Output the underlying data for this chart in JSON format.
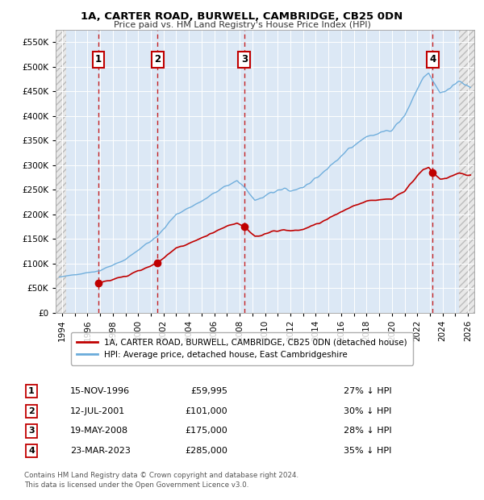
{
  "title": "1A, CARTER ROAD, BURWELL, CAMBRIDGE, CB25 0DN",
  "subtitle": "Price paid vs. HM Land Registry's House Price Index (HPI)",
  "legend_line1": "1A, CARTER ROAD, BURWELL, CAMBRIDGE, CB25 0DN (detached house)",
  "legend_line2": "HPI: Average price, detached house, East Cambridgeshire",
  "footer_line1": "Contains HM Land Registry data © Crown copyright and database right 2024.",
  "footer_line2": "This data is licensed under the Open Government Licence v3.0.",
  "sales": [
    {
      "num": 1,
      "date": "15-NOV-1996",
      "date_x": 1996.87,
      "price": 59995,
      "pct": "27% ↓ HPI"
    },
    {
      "num": 2,
      "date": "12-JUL-2001",
      "date_x": 2001.53,
      "price": 101000,
      "pct": "30% ↓ HPI"
    },
    {
      "num": 3,
      "date": "19-MAY-2008",
      "date_x": 2008.37,
      "price": 175000,
      "pct": "28% ↓ HPI"
    },
    {
      "num": 4,
      "date": "23-MAR-2023",
      "date_x": 2023.22,
      "price": 285000,
      "pct": "35% ↓ HPI"
    }
  ],
  "hpi_color": "#6aabdb",
  "sale_color": "#c00000",
  "ylim": [
    0,
    575000
  ],
  "xlim_left": 1993.5,
  "xlim_right": 2026.5,
  "hatch_left_end": 1994.3,
  "hatch_right_start": 2025.3,
  "yticks": [
    0,
    50000,
    100000,
    150000,
    200000,
    250000,
    300000,
    350000,
    400000,
    450000,
    500000,
    550000
  ],
  "xticks": [
    1994,
    1995,
    1996,
    1997,
    1998,
    1999,
    2000,
    2001,
    2002,
    2003,
    2004,
    2005,
    2006,
    2007,
    2008,
    2009,
    2010,
    2011,
    2012,
    2013,
    2014,
    2015,
    2016,
    2017,
    2018,
    2019,
    2020,
    2021,
    2022,
    2023,
    2024,
    2025,
    2026
  ]
}
